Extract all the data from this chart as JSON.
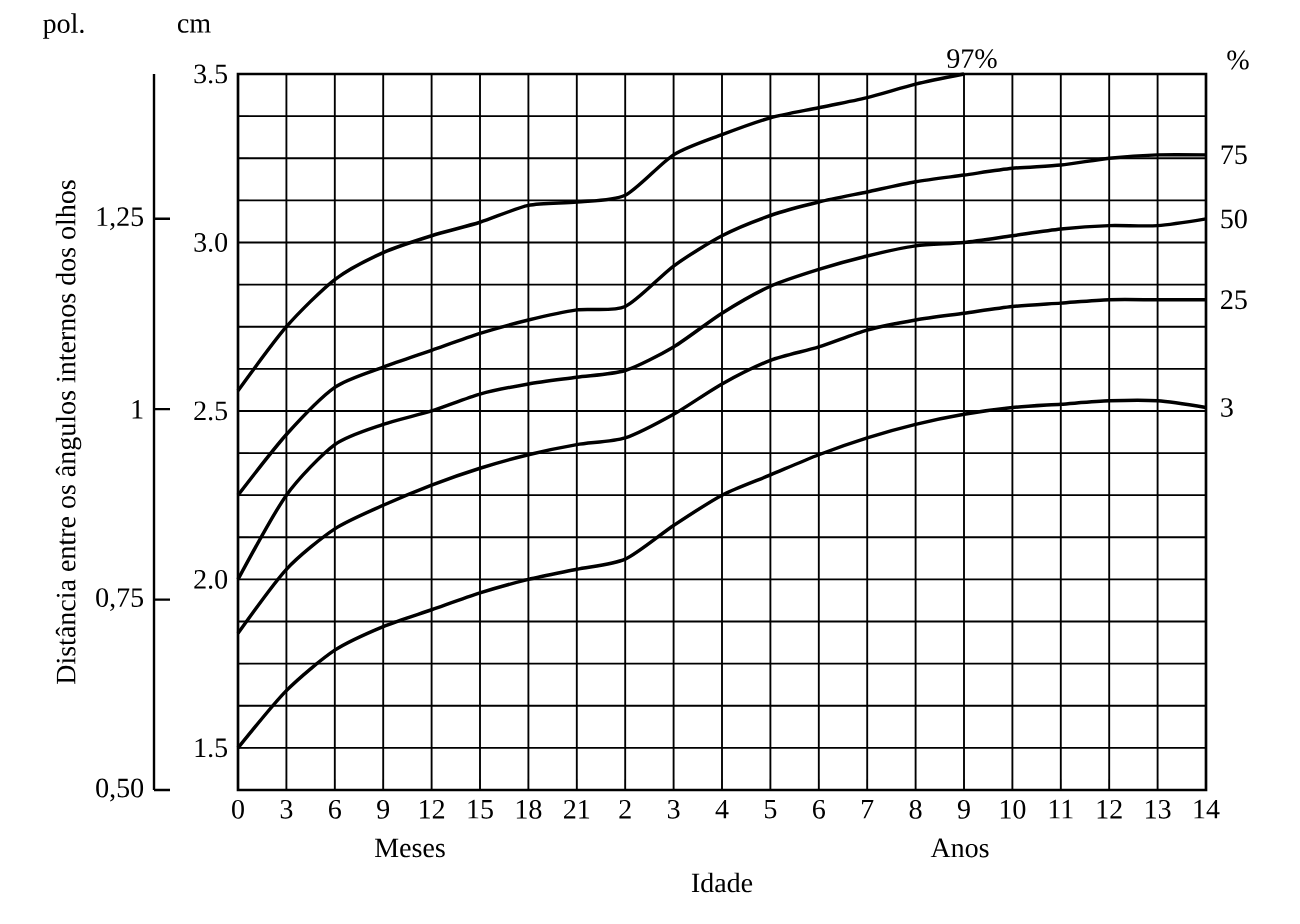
{
  "chart_data": {
    "type": "line",
    "xlabel": "Idade",
    "y2label": "Distância entre os ângulos internos dos olhos",
    "categories": [
      "0",
      "3",
      "6",
      "9",
      "12",
      "15",
      "18",
      "21",
      "2",
      "3",
      "4",
      "5",
      "6",
      "7",
      "8",
      "9",
      "10",
      "11",
      "12",
      "13",
      "14"
    ],
    "series": [
      {
        "name": "97%",
        "color": "#000000",
        "values": [
          2.56,
          2.75,
          2.89,
          2.97,
          3.02,
          3.06,
          3.11,
          3.12,
          3.14,
          3.26,
          3.32,
          3.37,
          3.4,
          3.43,
          3.47,
          3.5,
          null,
          null,
          null,
          null,
          null
        ]
      },
      {
        "name": "75",
        "color": "#000000",
        "values": [
          2.25,
          2.43,
          2.57,
          2.63,
          2.68,
          2.73,
          2.77,
          2.8,
          2.81,
          2.93,
          3.02,
          3.08,
          3.12,
          3.15,
          3.18,
          3.2,
          3.22,
          3.23,
          3.25,
          3.26,
          3.26
        ]
      },
      {
        "name": "50",
        "color": "#000000",
        "values": [
          2.0,
          2.25,
          2.4,
          2.46,
          2.5,
          2.55,
          2.58,
          2.6,
          2.62,
          2.69,
          2.79,
          2.87,
          2.92,
          2.96,
          2.99,
          3.0,
          3.02,
          3.04,
          3.05,
          3.05,
          3.07
        ]
      },
      {
        "name": "25",
        "color": "#000000",
        "values": [
          1.84,
          2.03,
          2.15,
          2.22,
          2.28,
          2.33,
          2.37,
          2.4,
          2.42,
          2.49,
          2.58,
          2.65,
          2.69,
          2.74,
          2.77,
          2.79,
          2.81,
          2.82,
          2.83,
          2.83,
          2.83
        ]
      },
      {
        "name": "3",
        "color": "#000000",
        "values": [
          1.5,
          1.67,
          1.79,
          1.86,
          1.91,
          1.96,
          2.0,
          2.03,
          2.06,
          2.16,
          2.25,
          2.31,
          2.37,
          2.42,
          2.46,
          2.49,
          2.51,
          2.52,
          2.53,
          2.53,
          2.51
        ]
      }
    ],
    "ylim": [
      1.375,
      3.5
    ],
    "yticks": [
      1.5,
      {
        "value": 1.625,
        "label": null
      },
      {
        "value": 1.75,
        "label": null
      },
      {
        "value": 1.875,
        "label": null
      },
      {
        "value": 2,
        "label": "2.0"
      },
      {
        "value": 2.125,
        "label": null
      },
      {
        "value": 2.25,
        "label": null
      },
      {
        "value": 2.375,
        "label": null
      },
      2.5,
      {
        "value": 2.625,
        "label": null
      },
      {
        "value": 2.75,
        "label": null
      },
      {
        "value": 2.875,
        "label": null
      },
      {
        "value": 3,
        "label": "3.0"
      },
      {
        "value": 3.125,
        "label": null
      },
      {
        "value": 3.25,
        "label": null
      },
      {
        "value": 3.375,
        "label": null
      },
      3.5
    ],
    "y2lim": [
      0.5,
      1.44
    ],
    "y2ticks": [
      {
        "value": 0.5,
        "label": "0,50"
      },
      {
        "value": 0.75,
        "label": "0,75"
      },
      1,
      {
        "value": 1.25,
        "label": "1,25"
      }
    ],
    "grid": true,
    "annotations": [
      "pol.",
      "cm",
      "%",
      "Meses",
      "Anos"
    ]
  }
}
